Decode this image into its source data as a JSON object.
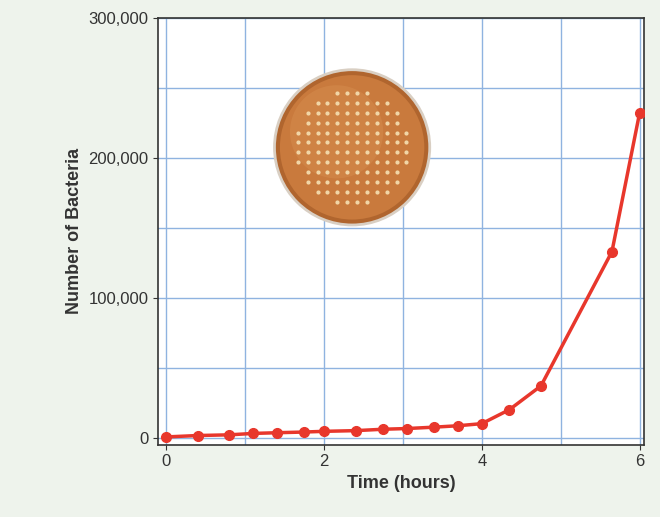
{
  "chart_data": {
    "type": "line",
    "x_label": "Time (hours)",
    "y_label": "Number of Bacteria",
    "x": [
      0,
      0.4,
      0.8,
      1.1,
      1.4,
      1.75,
      2.0,
      2.4,
      2.75,
      3.05,
      3.4,
      3.7,
      4.0,
      4.35,
      4.75,
      5.65,
      6.0
    ],
    "values": [
      500,
      1500,
      2000,
      3000,
      3500,
      4000,
      4500,
      5000,
      6000,
      6500,
      7500,
      8500,
      10000,
      20000,
      37000,
      133000,
      232000
    ],
    "color": "#e8372c",
    "marker": "o",
    "line_style": "solid",
    "xlim": [
      -0.1,
      6.05
    ],
    "ylim": [
      -5000,
      300000
    ],
    "xticks": [
      0,
      2,
      4,
      6
    ],
    "yticks": [
      0,
      {
        "value": 100000,
        "label": "100,000"
      },
      {
        "value": 200000,
        "label": "200,000"
      },
      {
        "value": 300000,
        "label": "300,000"
      }
    ],
    "grid": true
  }
}
